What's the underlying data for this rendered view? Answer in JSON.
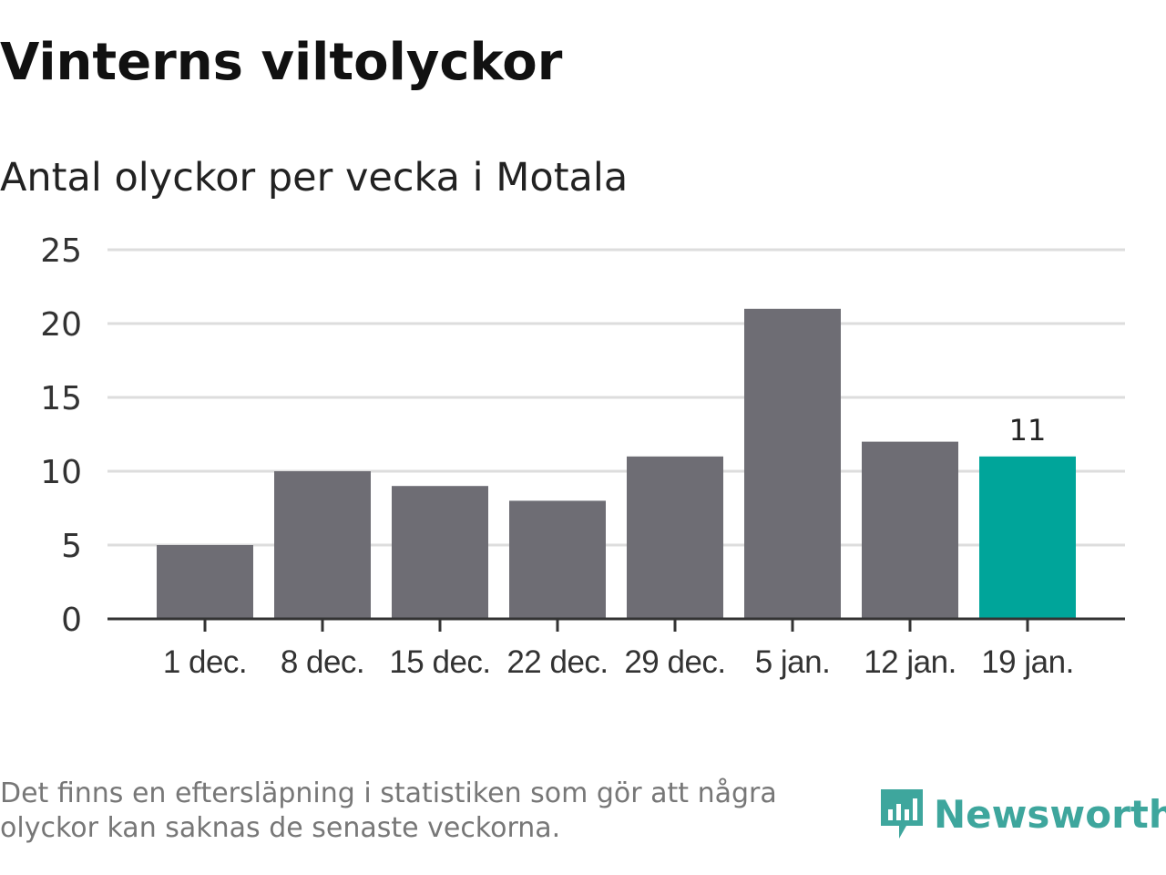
{
  "title": "Vinterns viltolyckor",
  "subtitle": "Antal olyckor per vecka i Motala",
  "note": "Det finns en eftersläpning i statistiken som gör att några olyckor kan saknas de senaste veckorna.",
  "logo": "Newsworthy",
  "colors": {
    "bar": "#6e6d74",
    "highlight": "#00a59a",
    "grid": "#dddddd"
  },
  "chart_data": {
    "type": "bar",
    "categories": [
      "1 dec.",
      "8 dec.",
      "15 dec.",
      "22 dec.",
      "29 dec.",
      "5 jan.",
      "12 jan.",
      "19 jan."
    ],
    "values": [
      5,
      10,
      9,
      8,
      11,
      21,
      12,
      11
    ],
    "highlight_index": 7,
    "data_labels": {
      "7": "11"
    },
    "yticks": [
      0,
      5,
      10,
      15,
      20,
      25
    ],
    "ylim": [
      0,
      25
    ],
    "xlabel": "",
    "ylabel": "",
    "grid": true
  }
}
